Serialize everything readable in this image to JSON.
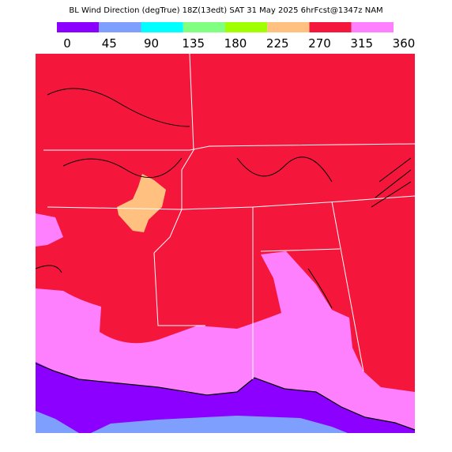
{
  "title": "BL Wind Direction (degTrue) 18Z(13edt) SAT 31 May 2025 6hrFcst@1347z NAM",
  "legend": {
    "colors": [
      "#8c00ff",
      "#7f9fff",
      "#00ffff",
      "#80ff80",
      "#a0ff00",
      "#ffc080",
      "#f5163c",
      "#ff80ff"
    ],
    "ticks": [
      0,
      45,
      90,
      135,
      180,
      225,
      270,
      315,
      360
    ]
  }
}
